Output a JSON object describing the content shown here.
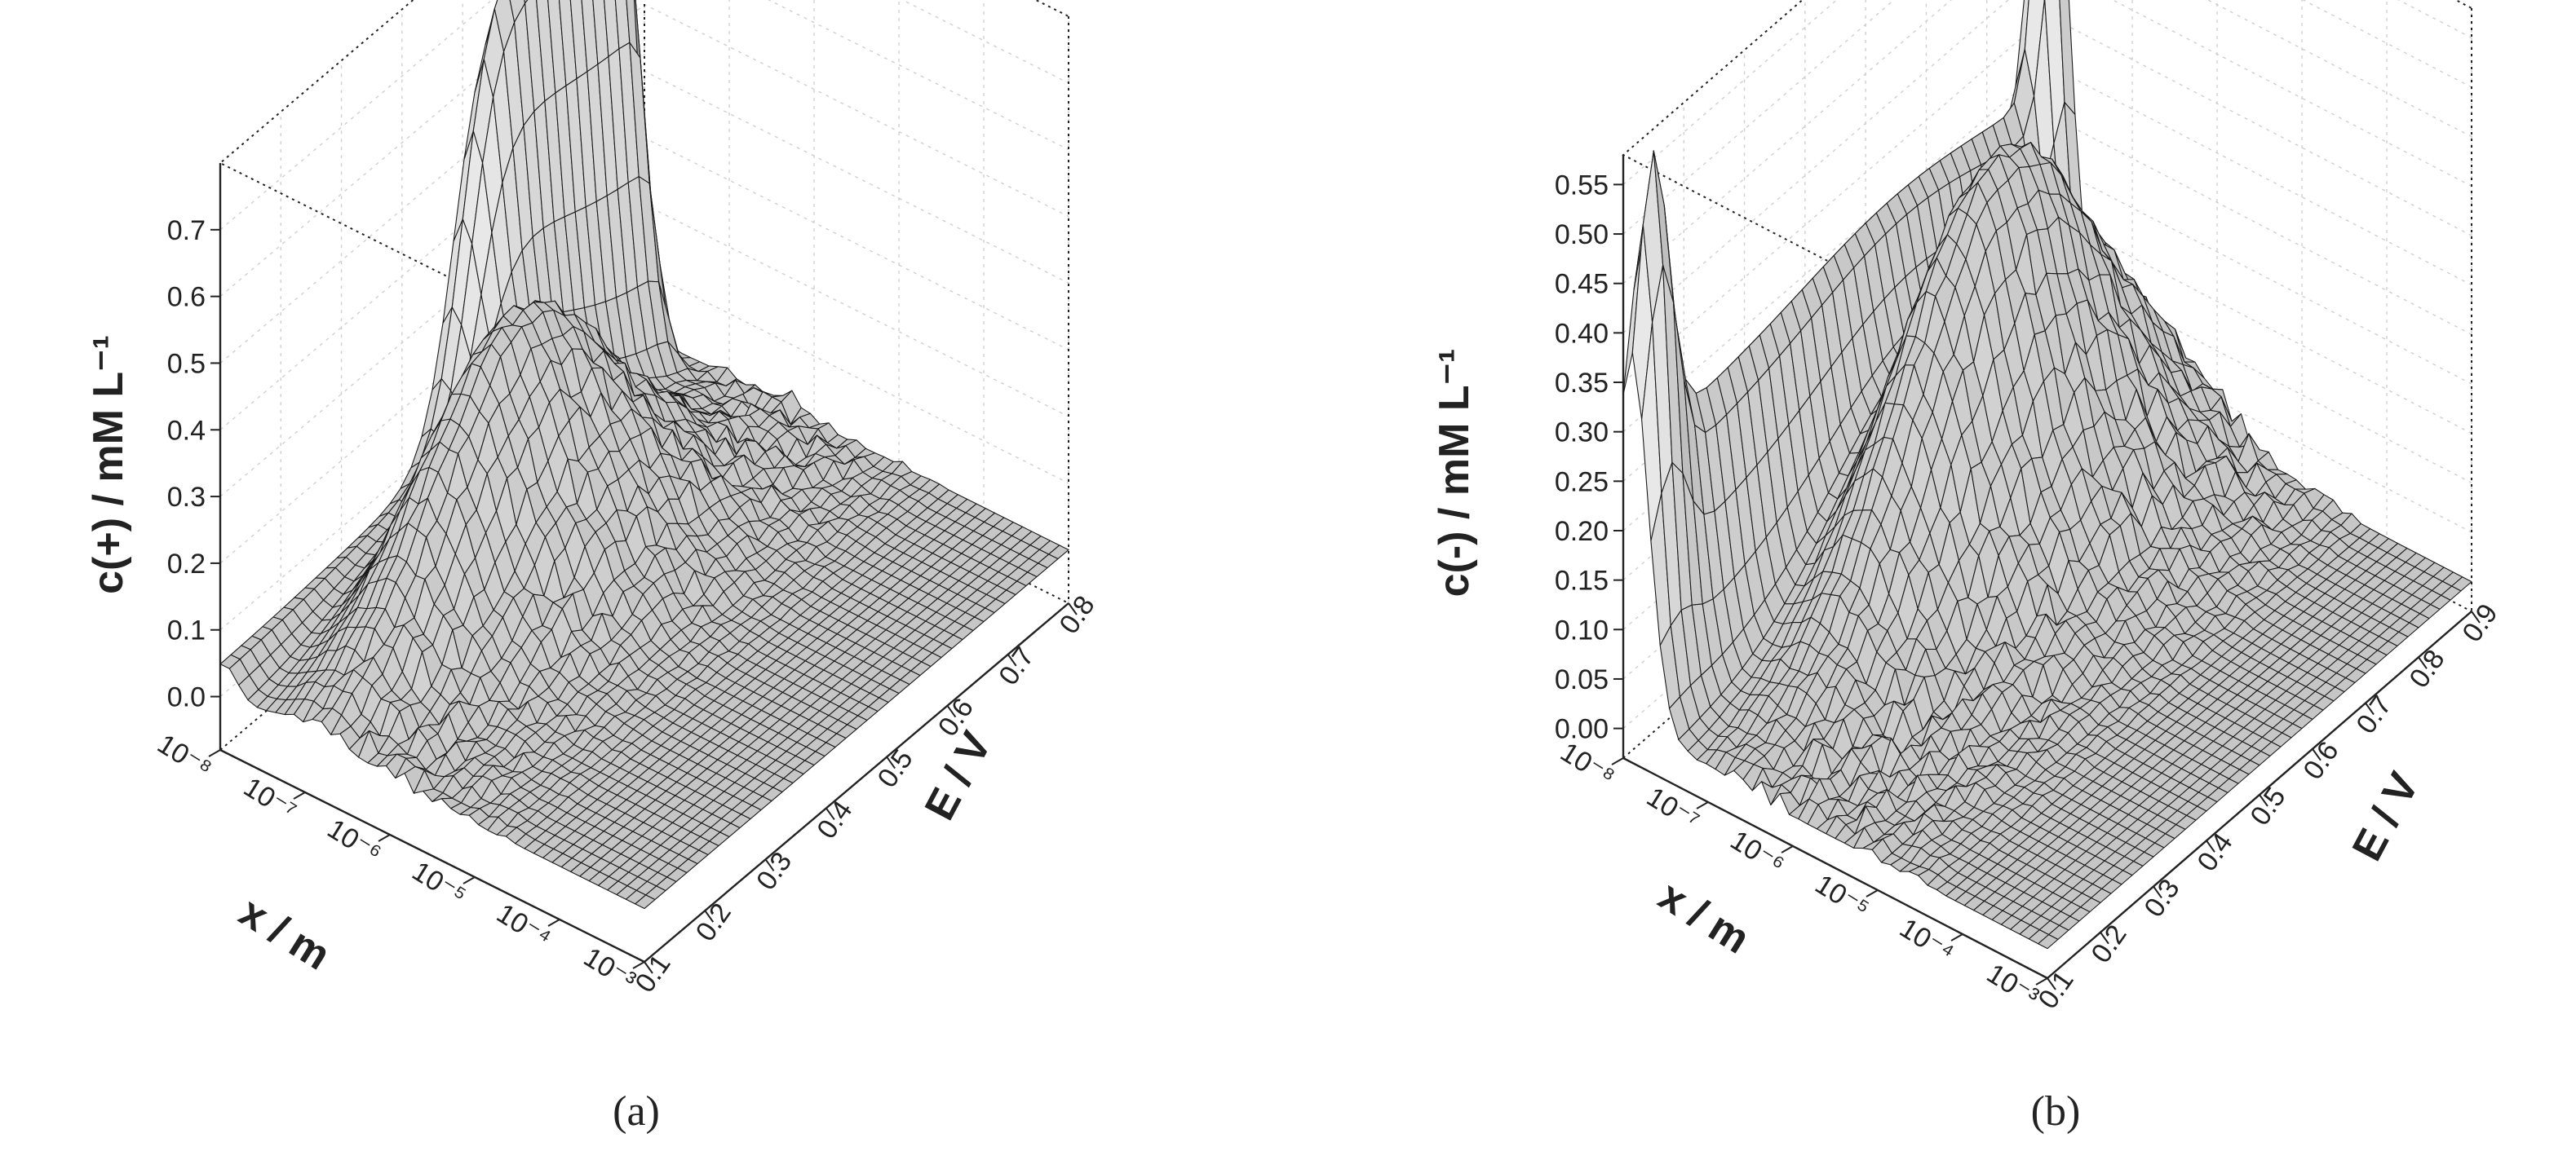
{
  "chart_data": [
    {
      "type": "surface3d",
      "panel_label": "(a)",
      "zlabel": "c(+) / mM L⁻¹",
      "xlabel": "x / m",
      "ylabel": "E / V",
      "x_scale": "log",
      "x_ticks": [
        "10⁻⁸",
        "10⁻⁷",
        "10⁻⁶",
        "10⁻⁵",
        "10⁻⁴",
        "10⁻³"
      ],
      "x_range": [
        1e-08,
        0.001
      ],
      "y_ticks": [
        "0.1",
        "0.2",
        "0.3",
        "0.4",
        "0.5",
        "0.6",
        "0.7",
        "0.8"
      ],
      "y_range": [
        0.1,
        0.8
      ],
      "z_ticks": [
        "0.0",
        "0.1",
        "0.2",
        "0.3",
        "0.4",
        "0.5",
        "0.6",
        "0.7"
      ],
      "z_range": [
        -0.08,
        0.8
      ],
      "surface_features": [
        {
          "feature": "plateau near x=1e-8 m",
          "E_range": [
            0.55,
            0.82
          ],
          "peak_c": 0.78
        },
        {
          "feature": "ridge near x=1e-7 m",
          "E_center": 0.45,
          "peak_c": 0.36
        },
        {
          "feature": "baseline",
          "c": 0.0
        }
      ]
    },
    {
      "type": "surface3d",
      "panel_label": "(b)",
      "zlabel": "c(-) / mM L⁻¹",
      "xlabel": "x / m",
      "ylabel": "E / V",
      "x_scale": "log",
      "x_ticks": [
        "10⁻⁸",
        "10⁻⁷",
        "10⁻⁶",
        "10⁻⁵",
        "10⁻⁴",
        "10⁻³"
      ],
      "x_range": [
        1e-08,
        0.001
      ],
      "y_ticks": [
        "0.1",
        "0.2",
        "0.3",
        "0.4",
        "0.5",
        "0.6",
        "0.7",
        "0.8",
        "0.9"
      ],
      "y_range": [
        0.1,
        0.9
      ],
      "z_ticks": [
        "0.00",
        "0.05",
        "0.10",
        "0.15",
        "0.20",
        "0.25",
        "0.30",
        "0.35",
        "0.40",
        "0.45",
        "0.50",
        "0.55"
      ],
      "z_range": [
        -0.03,
        0.58
      ],
      "surface_features": [
        {
          "feature": "spike near x=1e-8 m",
          "E_center": 0.12,
          "peak_c": 0.55
        },
        {
          "feature": "spike near x=1e-8 m",
          "E_center": 0.88,
          "peak_c": 0.57
        },
        {
          "feature": "wall near x=1e-8 m",
          "c": 0.28
        },
        {
          "feature": "ridge near x=1e-7 m",
          "E_center": 0.6,
          "peak_c": 0.36
        },
        {
          "feature": "baseline",
          "c": 0.0
        }
      ]
    }
  ]
}
